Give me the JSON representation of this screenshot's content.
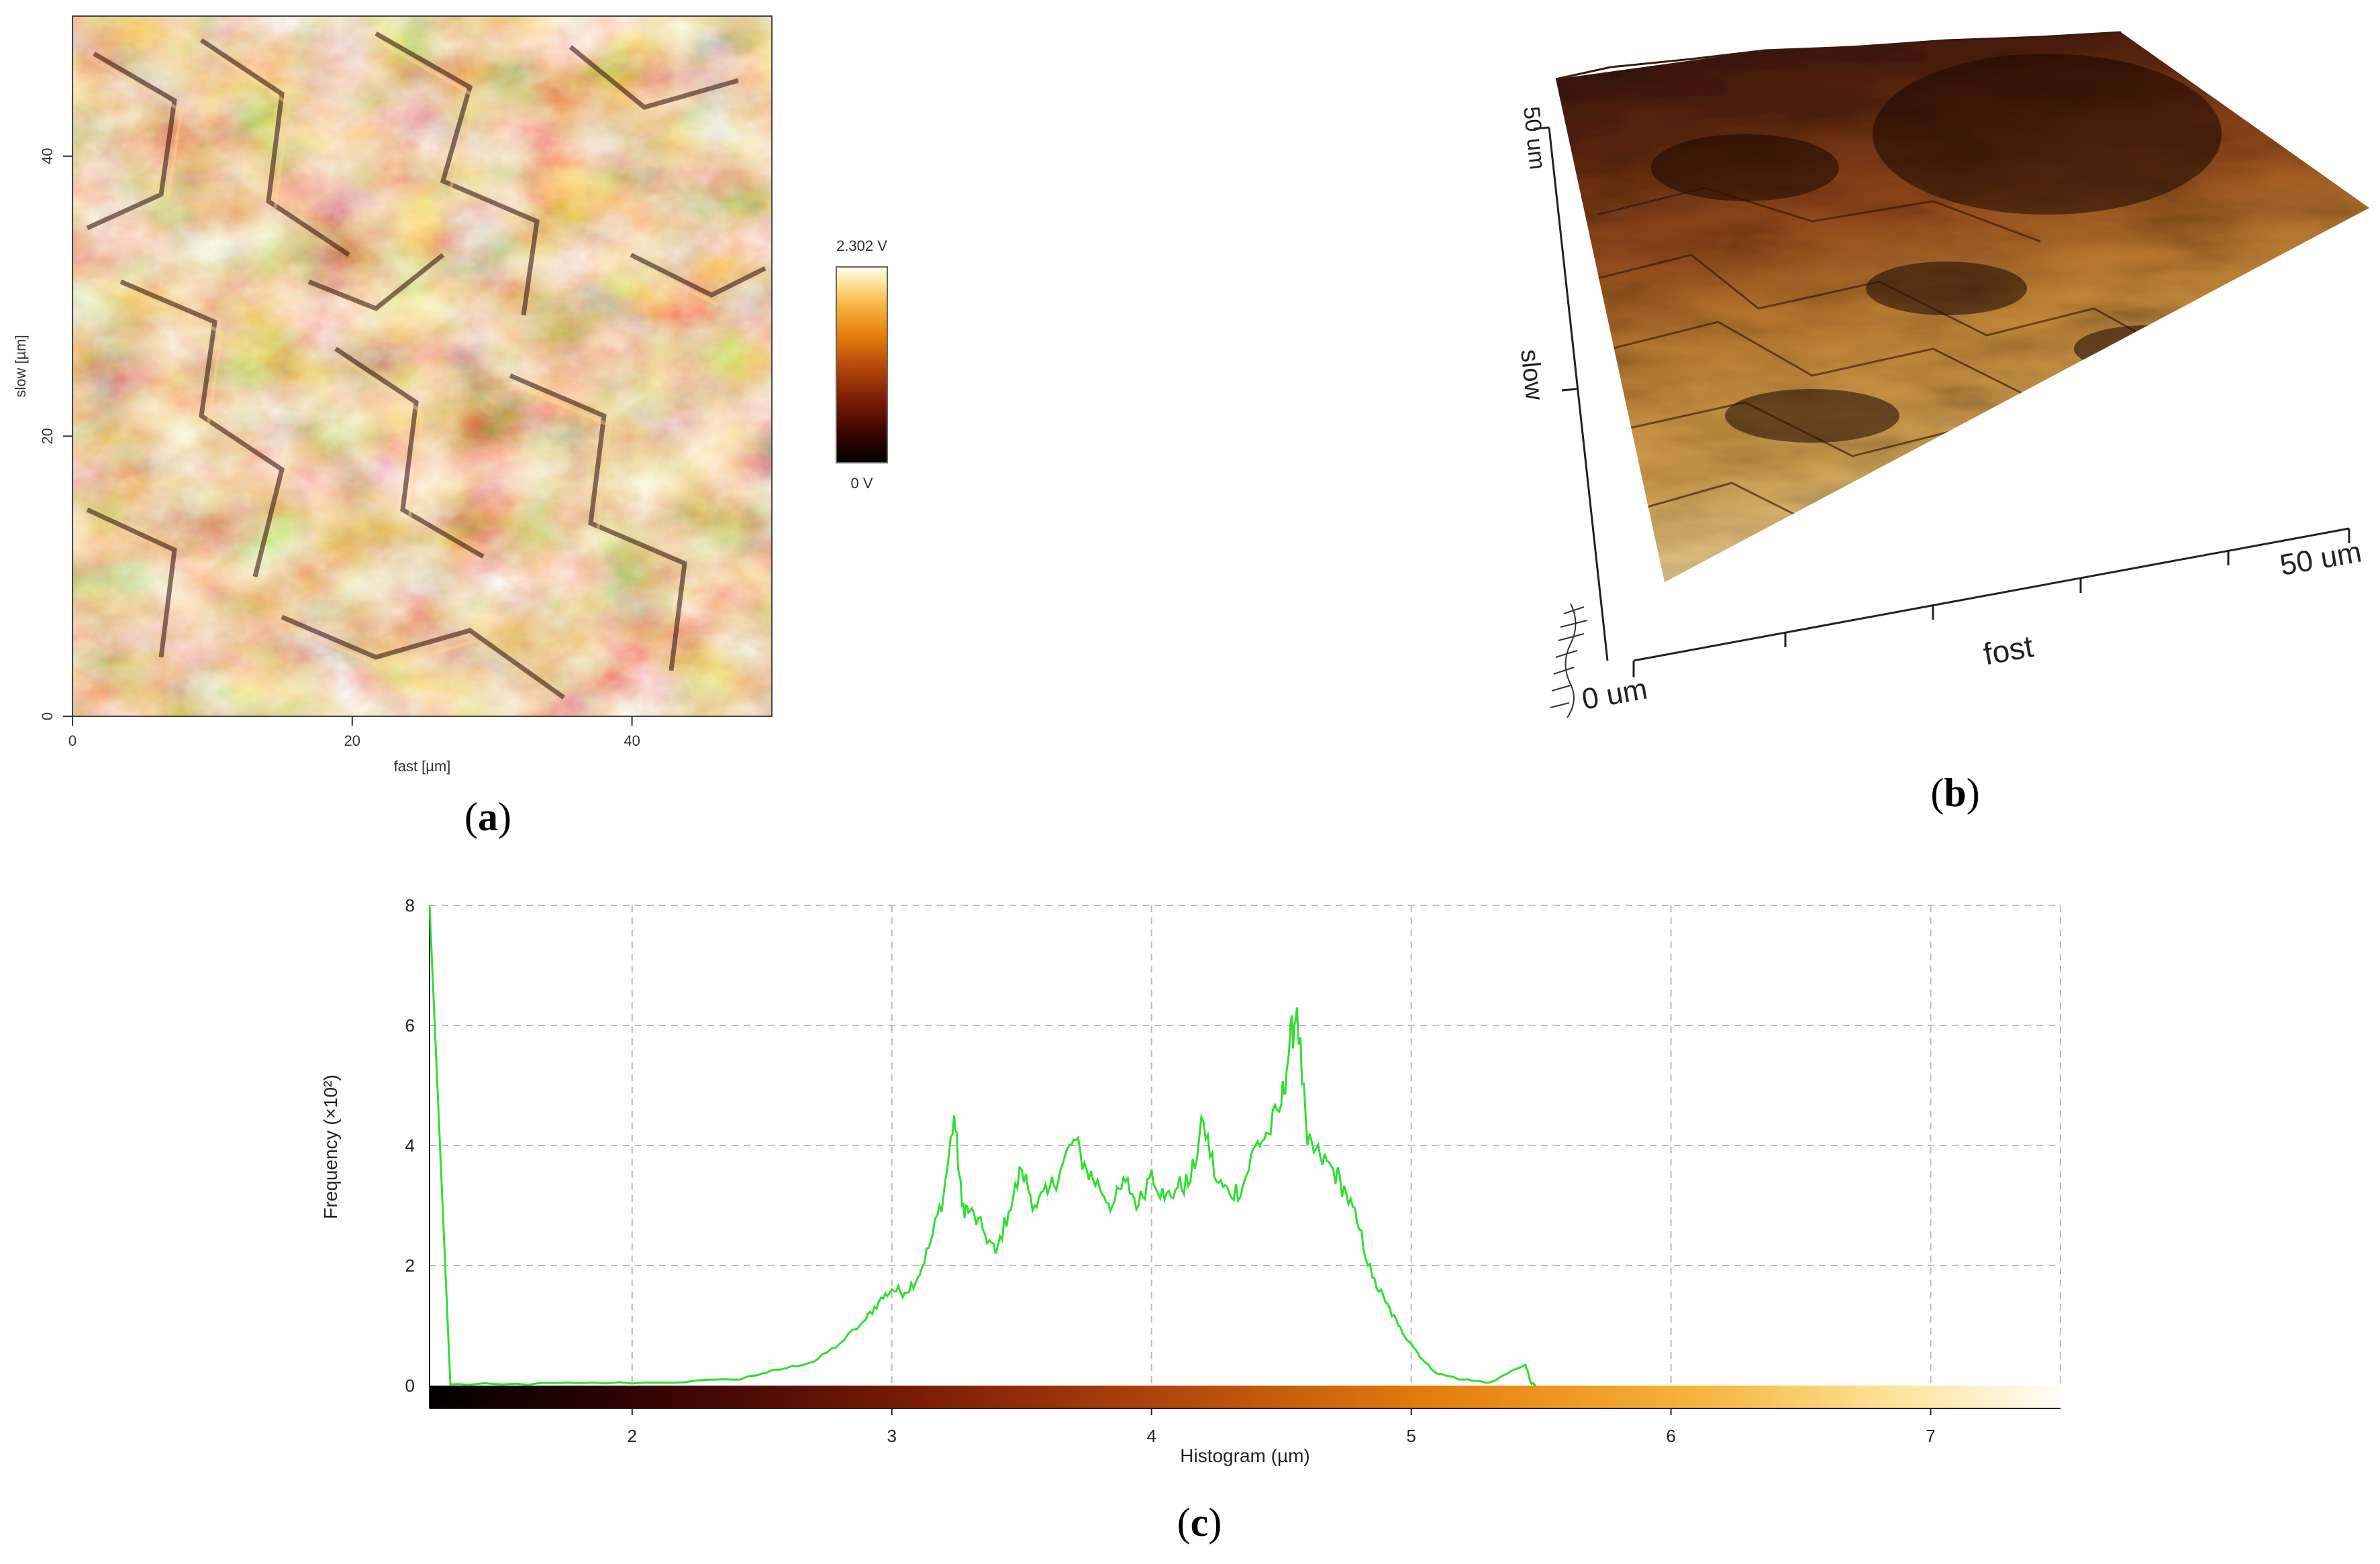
{
  "panels": {
    "a": {
      "label_text": "(a)",
      "label_letter": "a",
      "xlabel": "fast [µm]",
      "ylabel": "slow [µm]",
      "xticks": [
        "0",
        "20",
        "40"
      ],
      "yticks": [
        "0",
        "20",
        "40"
      ],
      "x_range": [
        0,
        50
      ],
      "y_range": [
        0,
        50
      ],
      "colorbar": {
        "max_label": "2.302 V",
        "min_label": "0 V"
      }
    },
    "b": {
      "label_text": "(b)",
      "label_letter": "b",
      "fast_label": "fost",
      "slow_label": "slow",
      "origin_label": "0 um",
      "x_end_label": "50 um",
      "y_end_label": "50 um"
    },
    "c": {
      "label_text": "(c)",
      "label_letter": "c"
    }
  },
  "colors": {
    "curve": "#33dd33",
    "grid": "#bbbbbb",
    "axis": "#222222",
    "cmap": [
      "#000000",
      "#3a0402",
      "#7a1c05",
      "#b64b0b",
      "#e57f0c",
      "#f7b43f",
      "#fde49a",
      "#fffdf6"
    ]
  },
  "chart_data": {
    "type": "line",
    "title": "",
    "xlabel": "Histogram (µm)",
    "ylabel": "Frequency (×10²)",
    "xlim": [
      1.22,
      7.5
    ],
    "ylim": [
      0,
      8
    ],
    "xticks": [
      2,
      3,
      4,
      5,
      6,
      7
    ],
    "yticks": [
      0,
      2,
      4,
      6,
      8
    ],
    "series": [
      {
        "name": "Histogram",
        "x": [
          1.22,
          1.3,
          1.5,
          1.8,
          2.1,
          2.4,
          2.5,
          2.6,
          2.7,
          2.8,
          2.9,
          2.95,
          3.0,
          3.05,
          3.1,
          3.15,
          3.2,
          3.24,
          3.27,
          3.3,
          3.35,
          3.4,
          3.45,
          3.5,
          3.55,
          3.6,
          3.65,
          3.7,
          3.75,
          3.8,
          3.85,
          3.9,
          3.95,
          4.0,
          4.05,
          4.1,
          4.15,
          4.2,
          4.25,
          4.3,
          4.35,
          4.4,
          4.45,
          4.5,
          4.53,
          4.56,
          4.6,
          4.65,
          4.7,
          4.75,
          4.8,
          4.85,
          4.9,
          4.95,
          5.0,
          5.05,
          5.1,
          5.2,
          5.3,
          5.44,
          5.46,
          5.48
        ],
        "y": [
          8.0,
          0.02,
          0.02,
          0.04,
          0.05,
          0.1,
          0.2,
          0.3,
          0.4,
          0.7,
          1.1,
          1.4,
          1.6,
          1.55,
          1.8,
          2.4,
          3.2,
          4.5,
          3.0,
          2.9,
          2.6,
          2.2,
          2.9,
          3.6,
          3.0,
          3.2,
          3.6,
          4.1,
          3.6,
          3.3,
          3.0,
          3.4,
          3.0,
          3.6,
          3.1,
          3.3,
          3.4,
          4.4,
          3.4,
          3.2,
          3.3,
          4.0,
          4.2,
          4.7,
          5.6,
          6.3,
          4.0,
          3.8,
          3.6,
          3.2,
          2.6,
          1.8,
          1.4,
          1.0,
          0.7,
          0.4,
          0.2,
          0.1,
          0.05,
          0.35,
          0.05,
          0.0
        ]
      }
    ]
  }
}
